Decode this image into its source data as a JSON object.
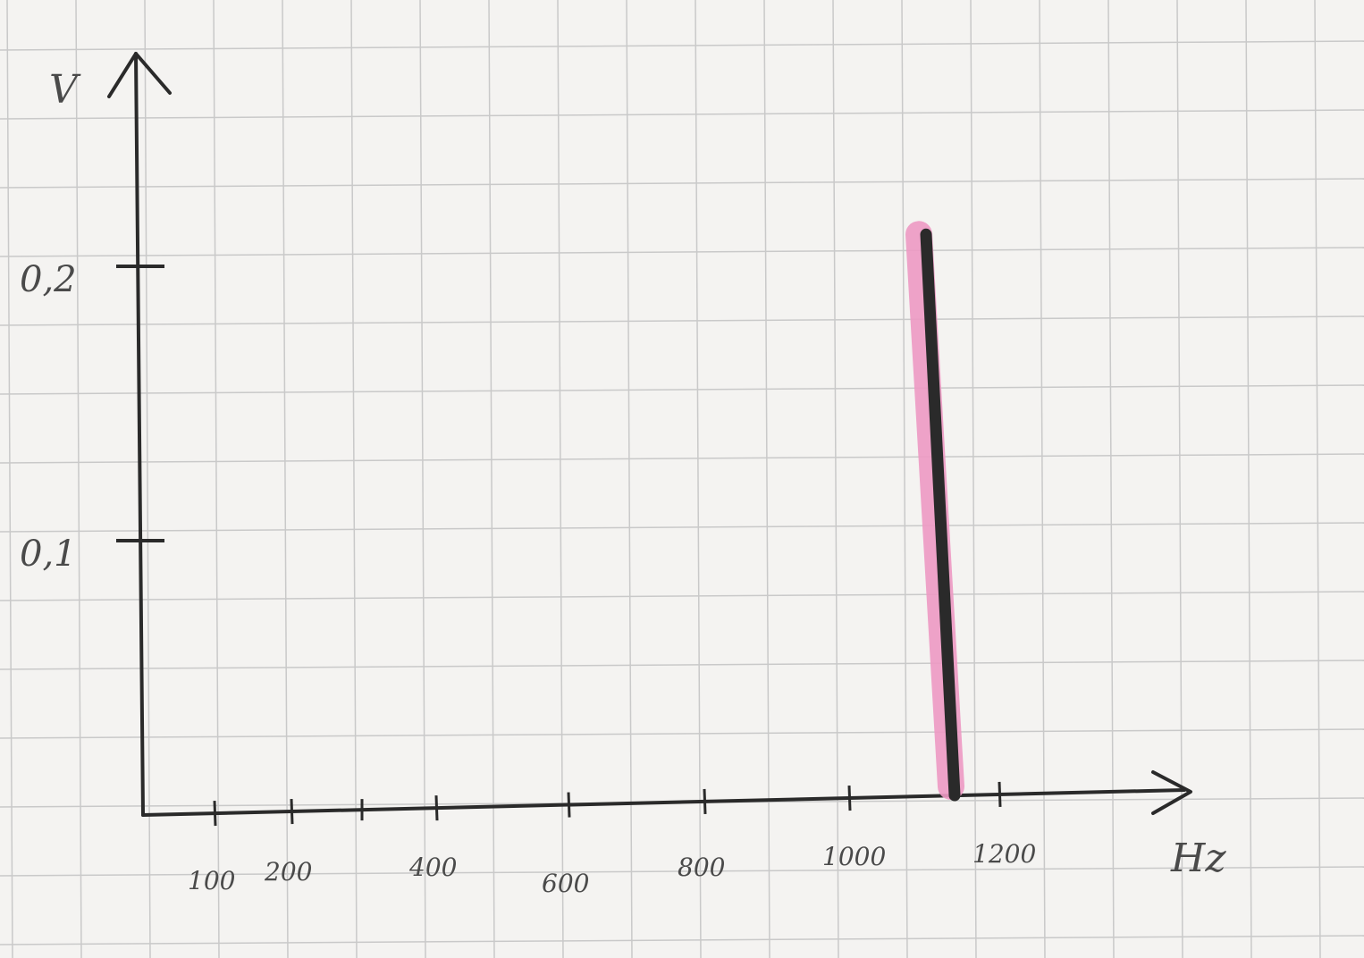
{
  "chart_data": {
    "type": "bar",
    "title": "",
    "xlabel": "Hz",
    "ylabel": "V",
    "x_ticks": [
      "100",
      "200",
      "400",
      "600",
      "800",
      "1000",
      "1200"
    ],
    "y_ticks": [
      "0,1",
      "0,2"
    ],
    "xlim": [
      0,
      1300
    ],
    "ylim": [
      0,
      0.27
    ],
    "bars": [
      {
        "x": 1150,
        "value": 0.21
      }
    ],
    "grid": true,
    "colors": {
      "paper": "#f4f3f1",
      "grid": "#c9c9c9",
      "ink": "#2a2a2a",
      "highlight": "#ee9ac4"
    }
  }
}
